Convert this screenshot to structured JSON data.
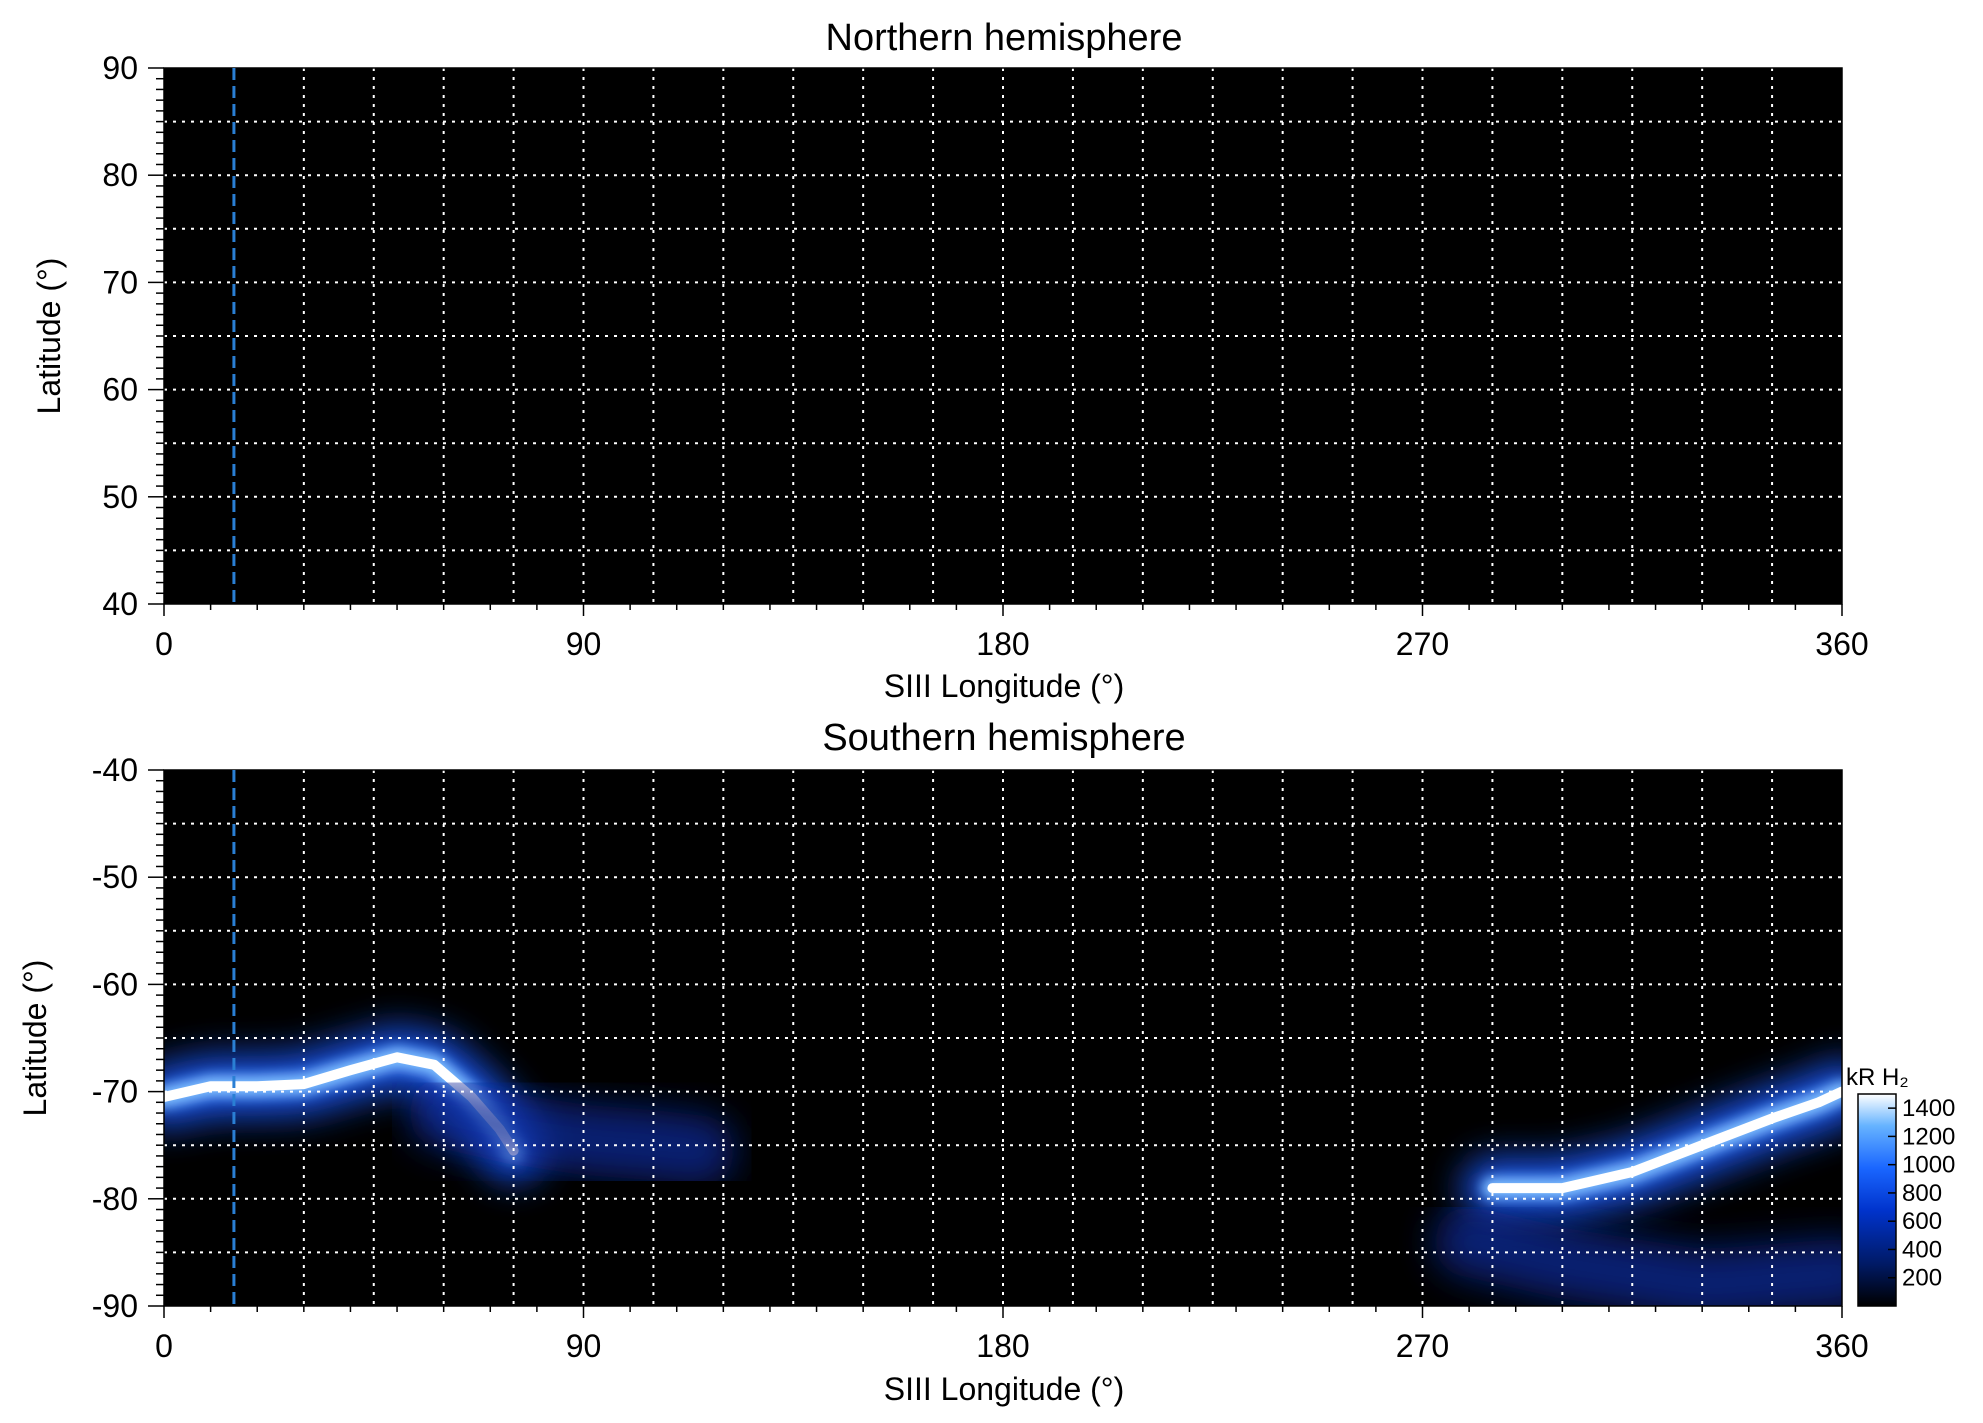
{
  "chart_data": [
    {
      "type": "heatmap",
      "title": "Northern hemisphere",
      "xlabel": "SIII Longitude (°)",
      "ylabel": "Latitude (°)",
      "xlim": [
        0,
        360
      ],
      "ylim": [
        40,
        90
      ],
      "xticks": [
        0,
        90,
        180,
        270,
        360
      ],
      "yticks": [
        40,
        50,
        60,
        70,
        80,
        90
      ],
      "grid": true,
      "grid_x_step": 15,
      "grid_y_step": 5,
      "reference_longitude": 15,
      "reference_color": "#2a7fd4",
      "emission": []
    },
    {
      "type": "heatmap",
      "title": "Southern hemisphere",
      "xlabel": "SIII Longitude (°)",
      "ylabel": "Latitude (°)",
      "xlim": [
        0,
        360
      ],
      "ylim": [
        -90,
        -40
      ],
      "xticks": [
        0,
        90,
        180,
        270,
        360
      ],
      "yticks": [
        -90,
        -80,
        -70,
        -60,
        -50,
        -40
      ],
      "grid": true,
      "grid_x_step": 15,
      "grid_y_step": 5,
      "reference_longitude": 15,
      "reference_color": "#2a7fd4",
      "emission": [
        {
          "name": "main-oval-west",
          "path": [
            [
              0,
              -70.5
            ],
            [
              10,
              -69.5
            ],
            [
              20,
              -69.5
            ],
            [
              30,
              -69.3
            ],
            [
              40,
              -68
            ],
            [
              50,
              -66.8
            ],
            [
              58,
              -67.5
            ],
            [
              66,
              -70.5
            ],
            [
              72,
              -73.5
            ],
            [
              75,
              -75.5
            ]
          ],
          "intensity": 1400
        },
        {
          "name": "diffuse-west-tail",
          "path": [
            [
              60,
              -72
            ],
            [
              75,
              -73.5
            ],
            [
              90,
              -74.5
            ],
            [
              105,
              -75
            ],
            [
              115,
              -75.5
            ]
          ],
          "intensity": 500
        },
        {
          "name": "main-oval-east",
          "path": [
            [
              285,
              -79
            ],
            [
              300,
              -79
            ],
            [
              315,
              -77.5
            ],
            [
              330,
              -75
            ],
            [
              345,
              -72.5
            ],
            [
              355,
              -71
            ],
            [
              360,
              -70
            ]
          ],
          "intensity": 1400
        },
        {
          "name": "polar-diffuse",
          "path": [
            [
              280,
              -84
            ],
            [
              300,
              -86
            ],
            [
              330,
              -88
            ],
            [
              360,
              -87
            ]
          ],
          "intensity": 350
        }
      ]
    }
  ],
  "colorbar": {
    "label": "kR H₂",
    "ticks": [
      200,
      400,
      600,
      800,
      1000,
      1200,
      1400
    ],
    "range": [
      0,
      1500
    ],
    "colors": [
      "#000000",
      "#001a66",
      "#0033cc",
      "#1a66ff",
      "#66b3ff",
      "#ffffff"
    ]
  }
}
